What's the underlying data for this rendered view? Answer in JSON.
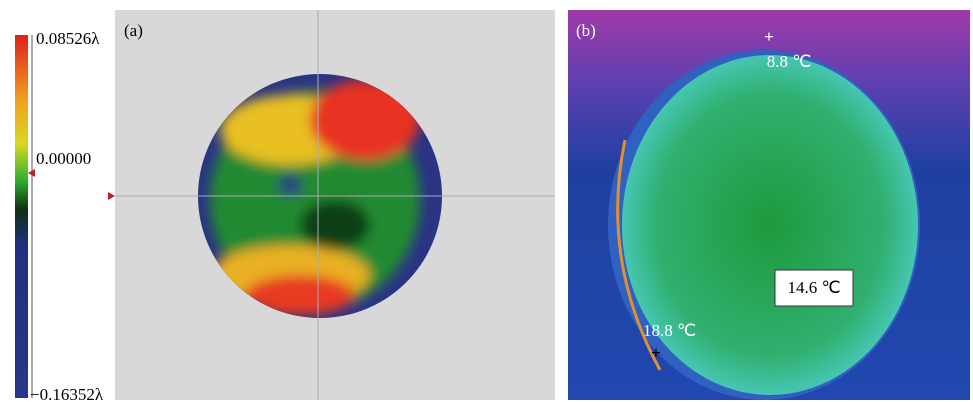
{
  "panel_a": {
    "label": "(a)",
    "scale": {
      "max": "0.08526λ",
      "mid": "0.00000",
      "min": "−0.16352λ"
    }
  },
  "panel_b": {
    "label": "(b)",
    "temperatures": [
      "8.8 ℃",
      "14.6 ℃",
      "18.8 ℃"
    ]
  }
}
